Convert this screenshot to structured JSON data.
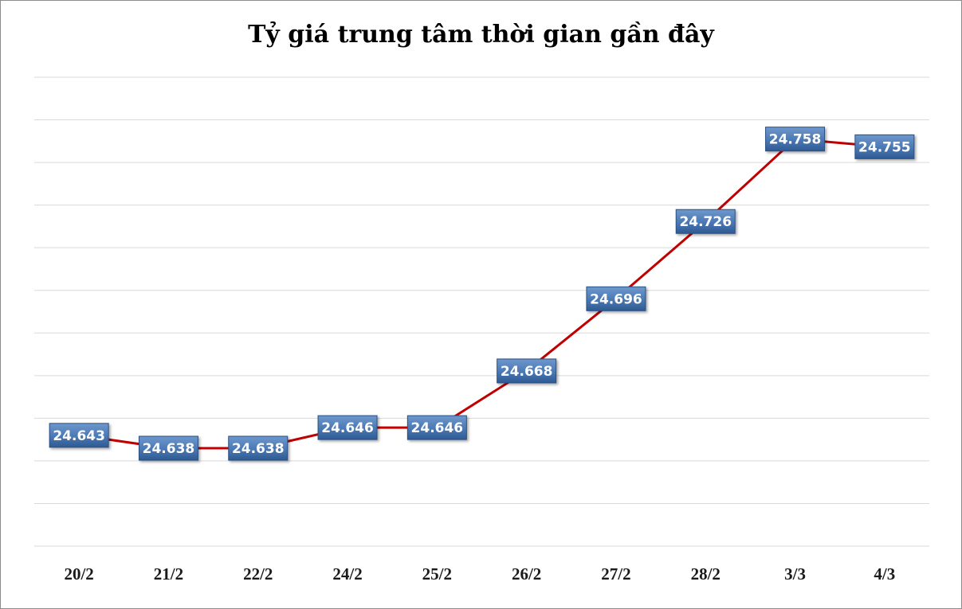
{
  "chart_data": {
    "type": "line",
    "title": "Tỷ giá trung tâm thời gian gần đây",
    "xlabel": "",
    "ylabel": "",
    "categories": [
      "20/2",
      "21/2",
      "22/2",
      "24/2",
      "25/2",
      "26/2",
      "27/2",
      "28/2",
      "3/3",
      "4/3"
    ],
    "series": [
      {
        "values": [
          24643,
          24638,
          24638,
          24646,
          24646,
          24668,
          24696,
          24726,
          24758,
          24755
        ],
        "labels": [
          "24.643",
          "24.638",
          "24.638",
          "24.646",
          "24.646",
          "24.668",
          "24.696",
          "24.726",
          "24.758",
          "24.755"
        ],
        "color": "#c00000"
      }
    ],
    "ylim": [
      24600,
      24782
    ],
    "gridlines": 12,
    "grid": true,
    "legend": "none",
    "label_box_color": "#4a78b4"
  }
}
